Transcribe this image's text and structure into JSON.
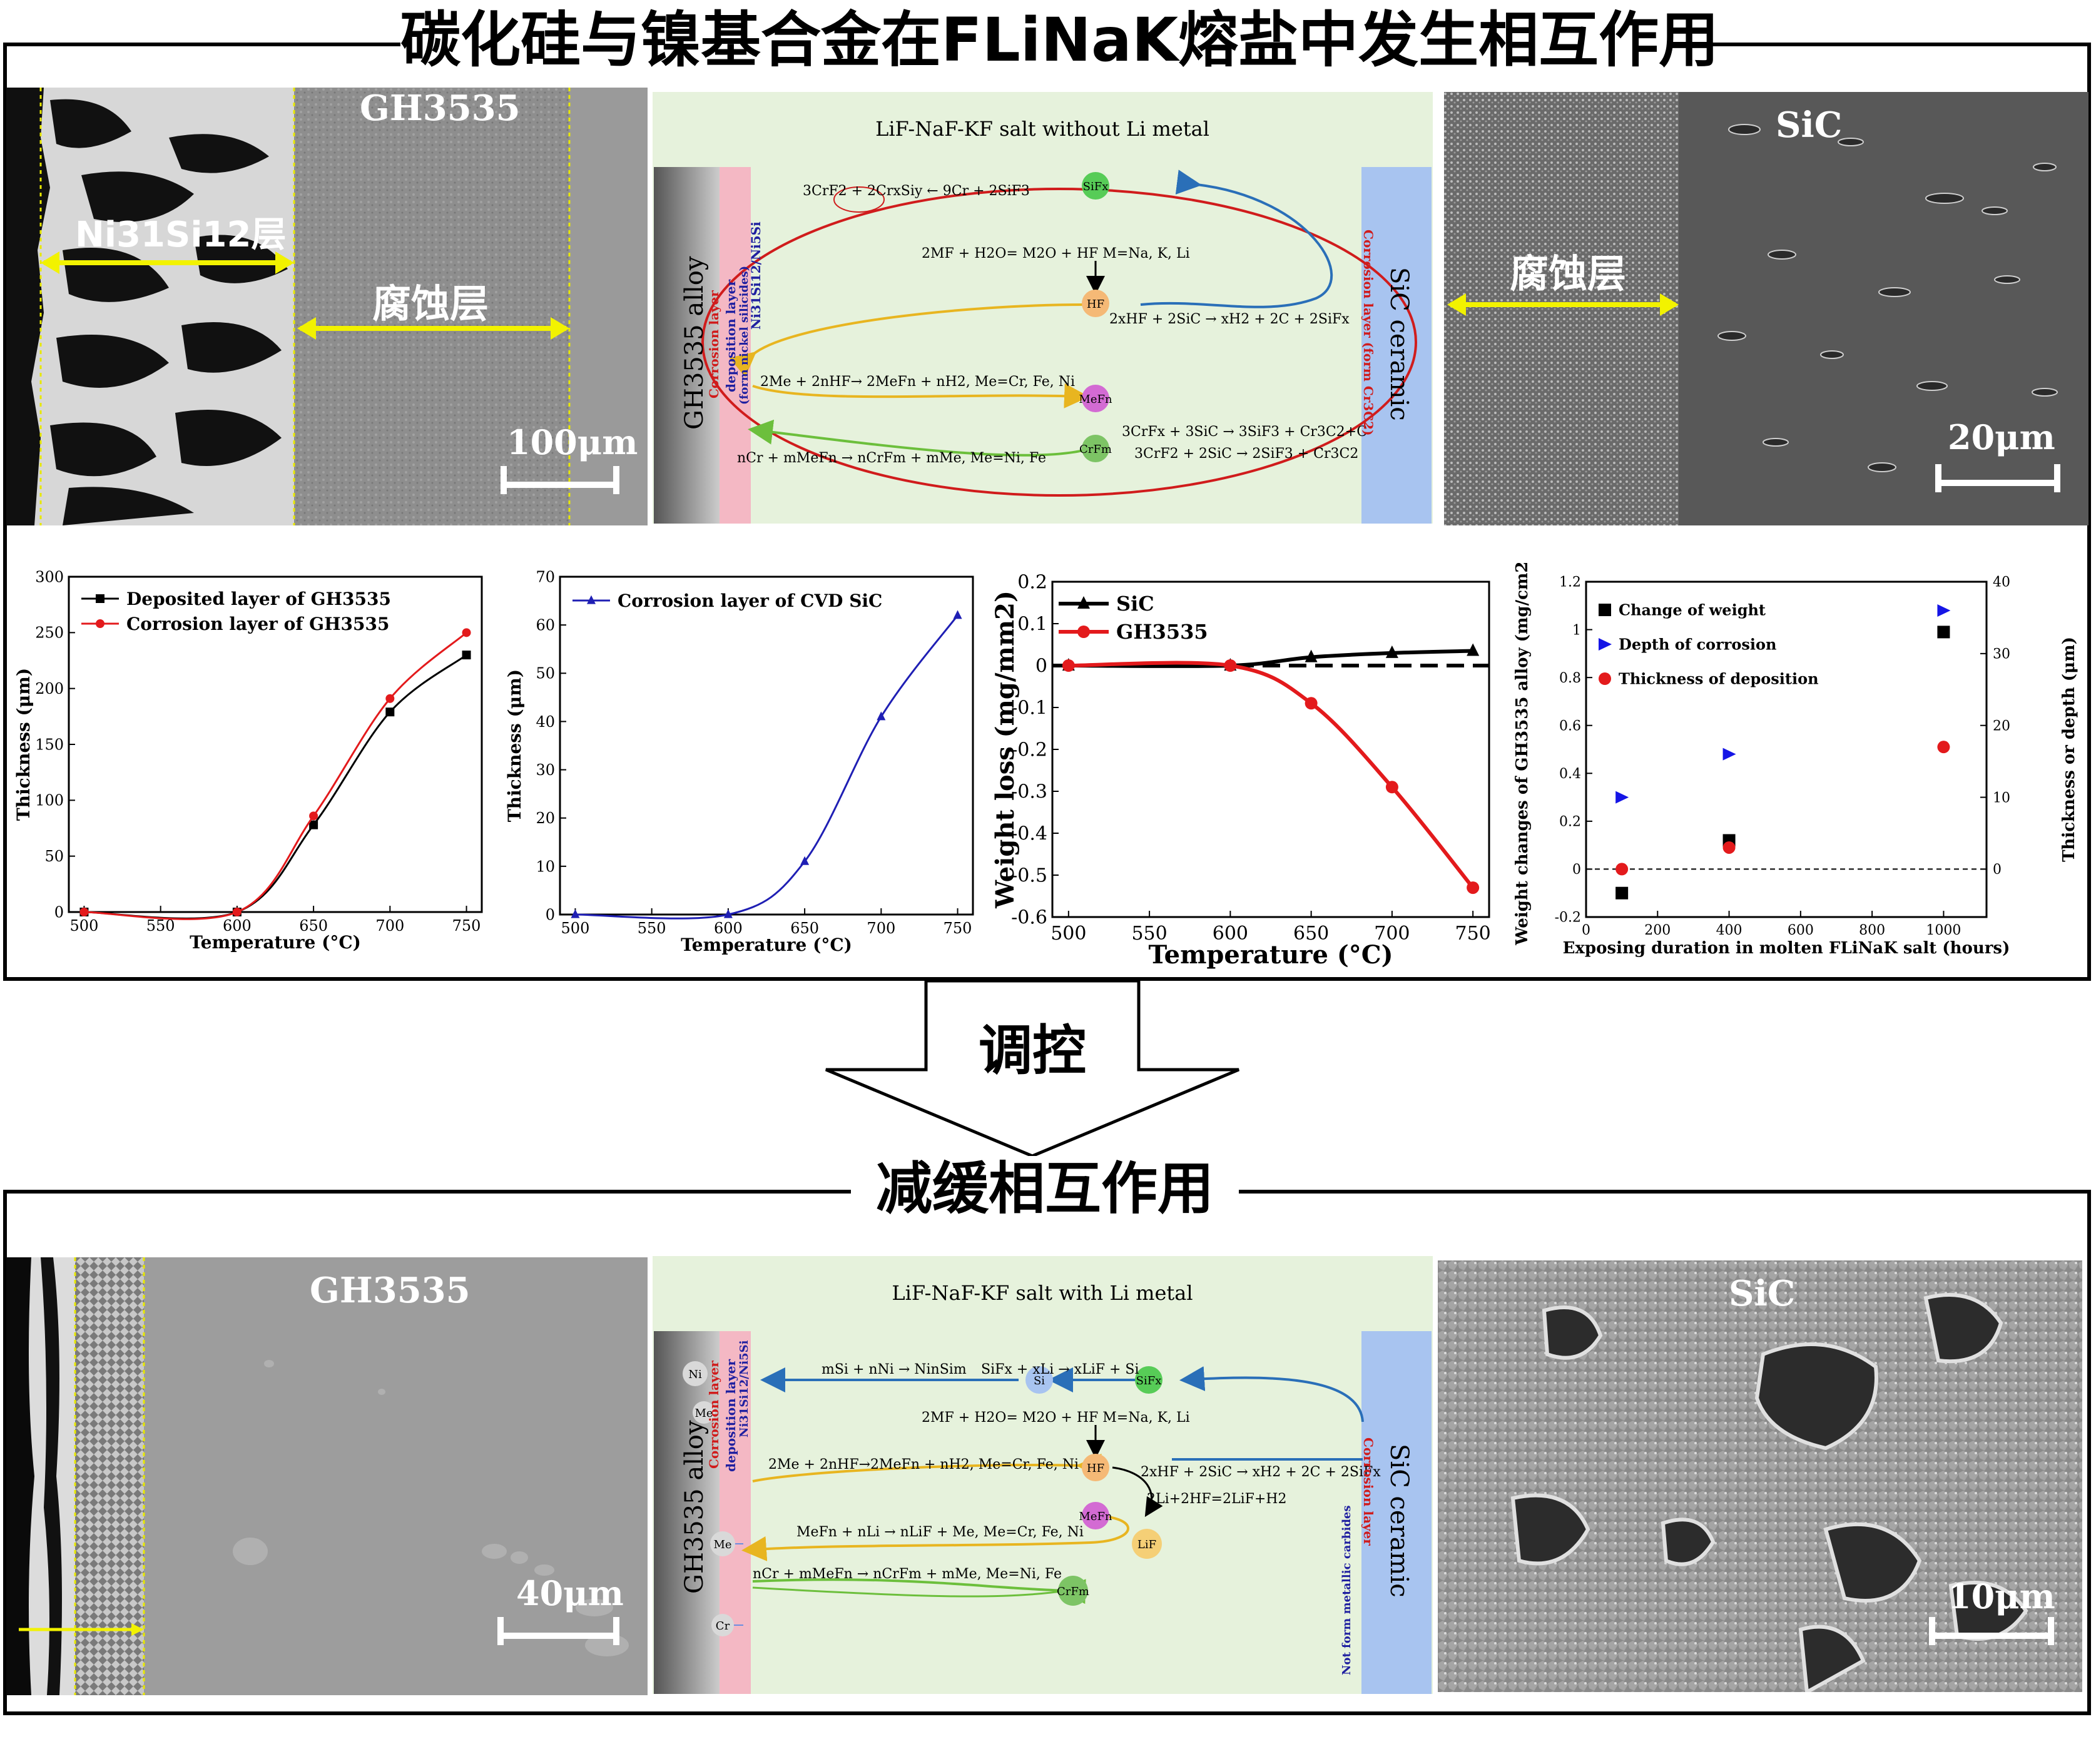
{
  "top_section": {
    "title": "碳化硅与镍基合金在FLiNaK熔盐中发生相互作用",
    "sem_left": {
      "sample_label": "GH3535",
      "layer1_label": "Ni31Si12层",
      "layer2_label": "腐蚀层",
      "scale_bar": "100μm"
    },
    "diagram": {
      "title": "LiF-NaF-KF salt without Li metal",
      "alloy_label": "GH3535 alloy",
      "ceramic_label": "SiC ceramic",
      "left_layer_corrosion": "Corrosion layer",
      "left_layer_deposition": "deposition layer",
      "left_layer_deposition_note": "(form nickel silicides)",
      "left_layer_phase": "Ni31Si12/Ni5Si",
      "right_layer": "Corrosion layer (form Cr3C2)",
      "nodes": [
        "SiFx",
        "HF",
        "MeFn",
        "CrFm"
      ],
      "eq_top": "3CrF2 + 2CrxSiy ← 9Cr + 2SiF3",
      "eq_hydrolysis": "2MF + H2O= M2O + HF   M=Na, K, Li",
      "eq_hf": "2xHF + 2SiC → xH2 + 2C + 2SiFx",
      "eq_me": "2Me + 2nHF→ 2MeFn + nH2, Me=Cr, Fe, Ni",
      "eq_cr": "nCr + mMeFn → nCrFm + mMe, Me=Ni, Fe",
      "eq_crf1": "3CrFx + 3SiC → 3SiF3 + Cr3C2+C",
      "eq_crf2": "3CrF2 + 2SiC → 2SiF3 + Cr3C2"
    },
    "sem_right": {
      "sample_label": "SiC",
      "layer_label": "腐蚀层",
      "scale_bar": "20μm"
    }
  },
  "chart_data": [
    {
      "type": "line",
      "series": [
        {
          "name": "Deposited layer of GH3535",
          "x": [
            500,
            600,
            650,
            700,
            750
          ],
          "y": [
            0,
            0,
            78,
            179,
            230
          ]
        },
        {
          "name": "Corrosion layer of GH3535",
          "x": [
            500,
            600,
            650,
            700,
            750
          ],
          "y": [
            0,
            0,
            86,
            191,
            250
          ]
        }
      ],
      "xlabel": "Temperature (°C)",
      "ylabel": "Thickness (μm)",
      "xlim": [
        490,
        760
      ],
      "ylim": [
        0,
        300
      ],
      "xticks": [
        500,
        550,
        600,
        650,
        700,
        750
      ],
      "yticks": [
        0,
        50,
        100,
        150,
        200,
        250,
        300
      ],
      "legend": "top-left",
      "colors": [
        "#000000",
        "#e31a1c"
      ]
    },
    {
      "type": "line",
      "series": [
        {
          "name": "Corrosion layer of CVD SiC",
          "x": [
            500,
            600,
            650,
            700,
            750
          ],
          "y": [
            0,
            0,
            11,
            41,
            62
          ]
        }
      ],
      "xlabel": "Temperature (°C)",
      "ylabel": "Thickness (μm)",
      "xlim": [
        490,
        760
      ],
      "ylim": [
        0,
        70
      ],
      "xticks": [
        500,
        550,
        600,
        650,
        700,
        750
      ],
      "yticks": [
        0,
        10,
        20,
        30,
        40,
        50,
        60,
        70
      ],
      "legend": "top-left",
      "colors": [
        "#1f1fb4"
      ]
    },
    {
      "type": "line",
      "series": [
        {
          "name": "SiC",
          "x": [
            500,
            600,
            650,
            700,
            750
          ],
          "y": [
            0,
            0,
            0.02,
            0.03,
            0.035
          ]
        },
        {
          "name": "GH3535",
          "x": [
            500,
            600,
            650,
            700,
            750
          ],
          "y": [
            0,
            0,
            -0.09,
            -0.29,
            -0.53
          ]
        }
      ],
      "xlabel": "Temperature (°C)",
      "ylabel": "Weight loss (mg/mm2)",
      "xlim": [
        490,
        760
      ],
      "ylim": [
        -0.6,
        0.2
      ],
      "xticks": [
        500,
        550,
        600,
        650,
        700,
        750
      ],
      "yticks": [
        -0.6,
        -0.5,
        -0.4,
        -0.3,
        -0.2,
        -0.1,
        0,
        0.1,
        0.2
      ],
      "legend": "top-left",
      "colors": [
        "#000000",
        "#e31a1c"
      ]
    },
    {
      "type": "scatter",
      "series": [
        {
          "name": "Change of weight",
          "axis": "left",
          "x": [
            100,
            400,
            1000
          ],
          "y": [
            -0.1,
            0.12,
            0.99
          ]
        },
        {
          "name": "Depth of corrosion",
          "axis": "right",
          "x": [
            100,
            400,
            1000
          ],
          "y": [
            10,
            16,
            36
          ]
        },
        {
          "name": "Thickness of deposition",
          "axis": "right",
          "x": [
            100,
            400,
            1000
          ],
          "y": [
            0,
            3,
            17
          ]
        }
      ],
      "xlabel": "Exposing duration in molten FLiNaK salt (hours)",
      "ylabel": "Weight changes of GH3535 alloy (mg/cm2)",
      "ylabel_right": "Thickness or depth (μm)",
      "xlim": [
        0,
        1120
      ],
      "ylim": [
        -0.2,
        1.2
      ],
      "ylim_right": [
        -6.667,
        40
      ],
      "xticks": [
        0,
        200,
        400,
        600,
        800,
        1000
      ],
      "yticks": [
        -0.2,
        0,
        0.2,
        0.4,
        0.6,
        0.8,
        1.0,
        1.2
      ],
      "yticks_right": [
        0,
        10,
        20,
        30,
        40
      ],
      "legend": "top-left",
      "colors": [
        "#000000",
        "#1515e6",
        "#e31a1c"
      ]
    }
  ],
  "middle": {
    "control_label": "调控"
  },
  "bottom_section": {
    "title": "减缓相互作用",
    "sem_left": {
      "sample_label": "GH3535",
      "scale_bar": "40μm"
    },
    "diagram": {
      "title": "LiF-NaF-KF salt with Li metal",
      "alloy_label": "GH3535 alloy",
      "ceramic_label": "SiC ceramic",
      "left_layer_corrosion": "Corrosion layer",
      "left_layer_deposition": "deposition layer",
      "left_layer_phase": "Ni31Si12/Ni5Si",
      "right_layer": "Corrosion layer",
      "right_note": "Not form metallic carbides",
      "nodes": [
        "Si",
        "SiFx",
        "HF",
        "MeFn",
        "LiF",
        "CrFm"
      ],
      "side_nodes": [
        "Ni",
        "Me",
        "Me",
        "Cr"
      ],
      "eq_si": "mSi + nNi → NinSim",
      "eq_li": "SiFx + xLi → xLiF + Si",
      "eq_hydrolysis": "2MF + H2O= M2O + HF   M=Na, K, Li",
      "eq_hf": "2xHF + 2SiC → xH2 + 2C + 2SiFx",
      "eq_me": "2Me + 2nHF→2MeFn + nH2, Me=Cr, Fe, Ni",
      "eq_lihf": "2Li+2HF=2LiF+H2",
      "eq_mef": "MeFn + nLi → nLiF + Me, Me=Cr, Fe, Ni",
      "eq_cr": "nCr + mMeFn → nCrFm + mMe, Me=Ni, Fe"
    },
    "sem_right": {
      "sample_label": "SiC",
      "scale_bar": "10μm"
    }
  }
}
